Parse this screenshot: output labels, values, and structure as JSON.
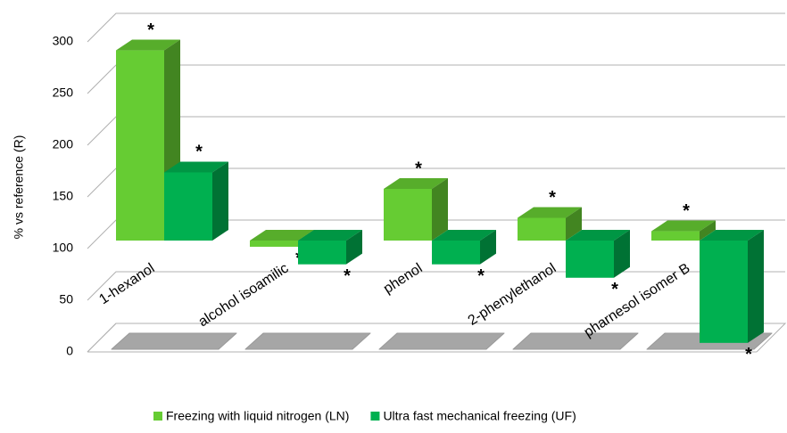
{
  "chart_data": {
    "type": "bar3d",
    "y_label": "% vs  reference (R)",
    "categories": [
      "1-hexanol",
      "alcohol isoamilic",
      "phenol",
      "2-phenylethanol",
      "pharnesol isomer B"
    ],
    "series": [
      {
        "name": "Freezing with liquid nitrogen  (LN)",
        "color": "#66cc33",
        "values": [
          284,
          94,
          150,
          122,
          109
        ]
      },
      {
        "name": "Ultra fast mechanical freezing  (UF)",
        "color": "#00b050",
        "values": [
          166,
          77,
          77,
          64,
          1
        ]
      }
    ],
    "base": 100,
    "annotations": [
      "*",
      "*",
      "*",
      "*",
      "*",
      "*",
      "*",
      "*",
      "*",
      "*"
    ],
    "ylim": [
      0,
      300
    ],
    "yticks": [
      0,
      50,
      100,
      150,
      200,
      250,
      300
    ],
    "grid": true,
    "legend": "bottom"
  }
}
